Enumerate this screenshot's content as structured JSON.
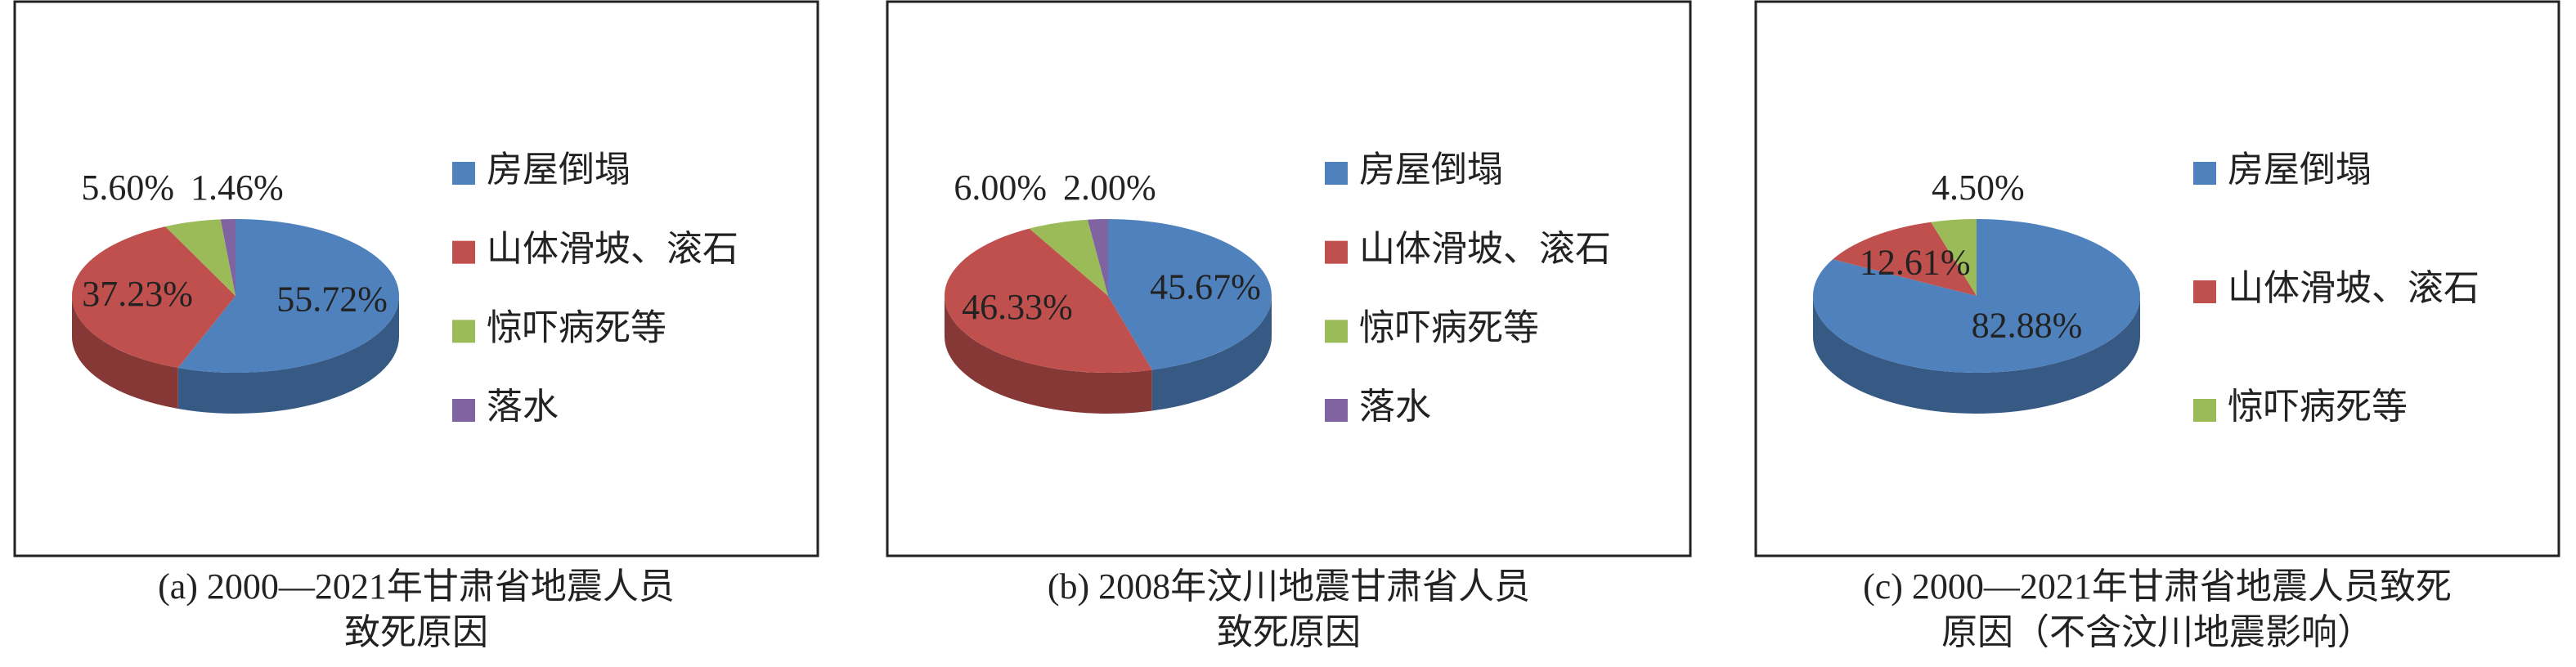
{
  "chart_data": [
    {
      "type": "pie",
      "caption": [
        "(a) 2000—2021年甘肃省地震人员",
        "致死原因"
      ],
      "categories": [
        "房屋倒塌",
        "山体滑坡、滚石",
        "惊吓病死等",
        "落水"
      ],
      "values": [
        55.72,
        37.23,
        5.6,
        1.46
      ],
      "value_labels": [
        "55.72%",
        "37.23%",
        "5.60%",
        "1.46%"
      ],
      "colors": [
        "#4f81bd",
        "#c0504d",
        "#9bbb59",
        "#8064a2"
      ]
    },
    {
      "type": "pie",
      "caption": [
        "(b) 2008年汶川地震甘肃省人员",
        "致死原因"
      ],
      "categories": [
        "房屋倒塌",
        "山体滑坡、滚石",
        "惊吓病死等",
        "落水"
      ],
      "values": [
        45.67,
        46.33,
        6.0,
        2.0
      ],
      "value_labels": [
        "45.67%",
        "46.33%",
        "6.00%",
        "2.00%"
      ],
      "colors": [
        "#4f81bd",
        "#c0504d",
        "#9bbb59",
        "#8064a2"
      ]
    },
    {
      "type": "pie",
      "caption": [
        "(c) 2000—2021年甘肃省地震人员致死",
        "原因（不含汶川地震影响）"
      ],
      "categories": [
        "房屋倒塌",
        "山体滑坡、滚石",
        "惊吓病死等"
      ],
      "values": [
        82.88,
        12.61,
        4.5
      ],
      "value_labels": [
        "82.88%",
        "12.61%",
        "4.50%"
      ],
      "colors": [
        "#4f81bd",
        "#c0504d",
        "#9bbb59"
      ]
    }
  ]
}
